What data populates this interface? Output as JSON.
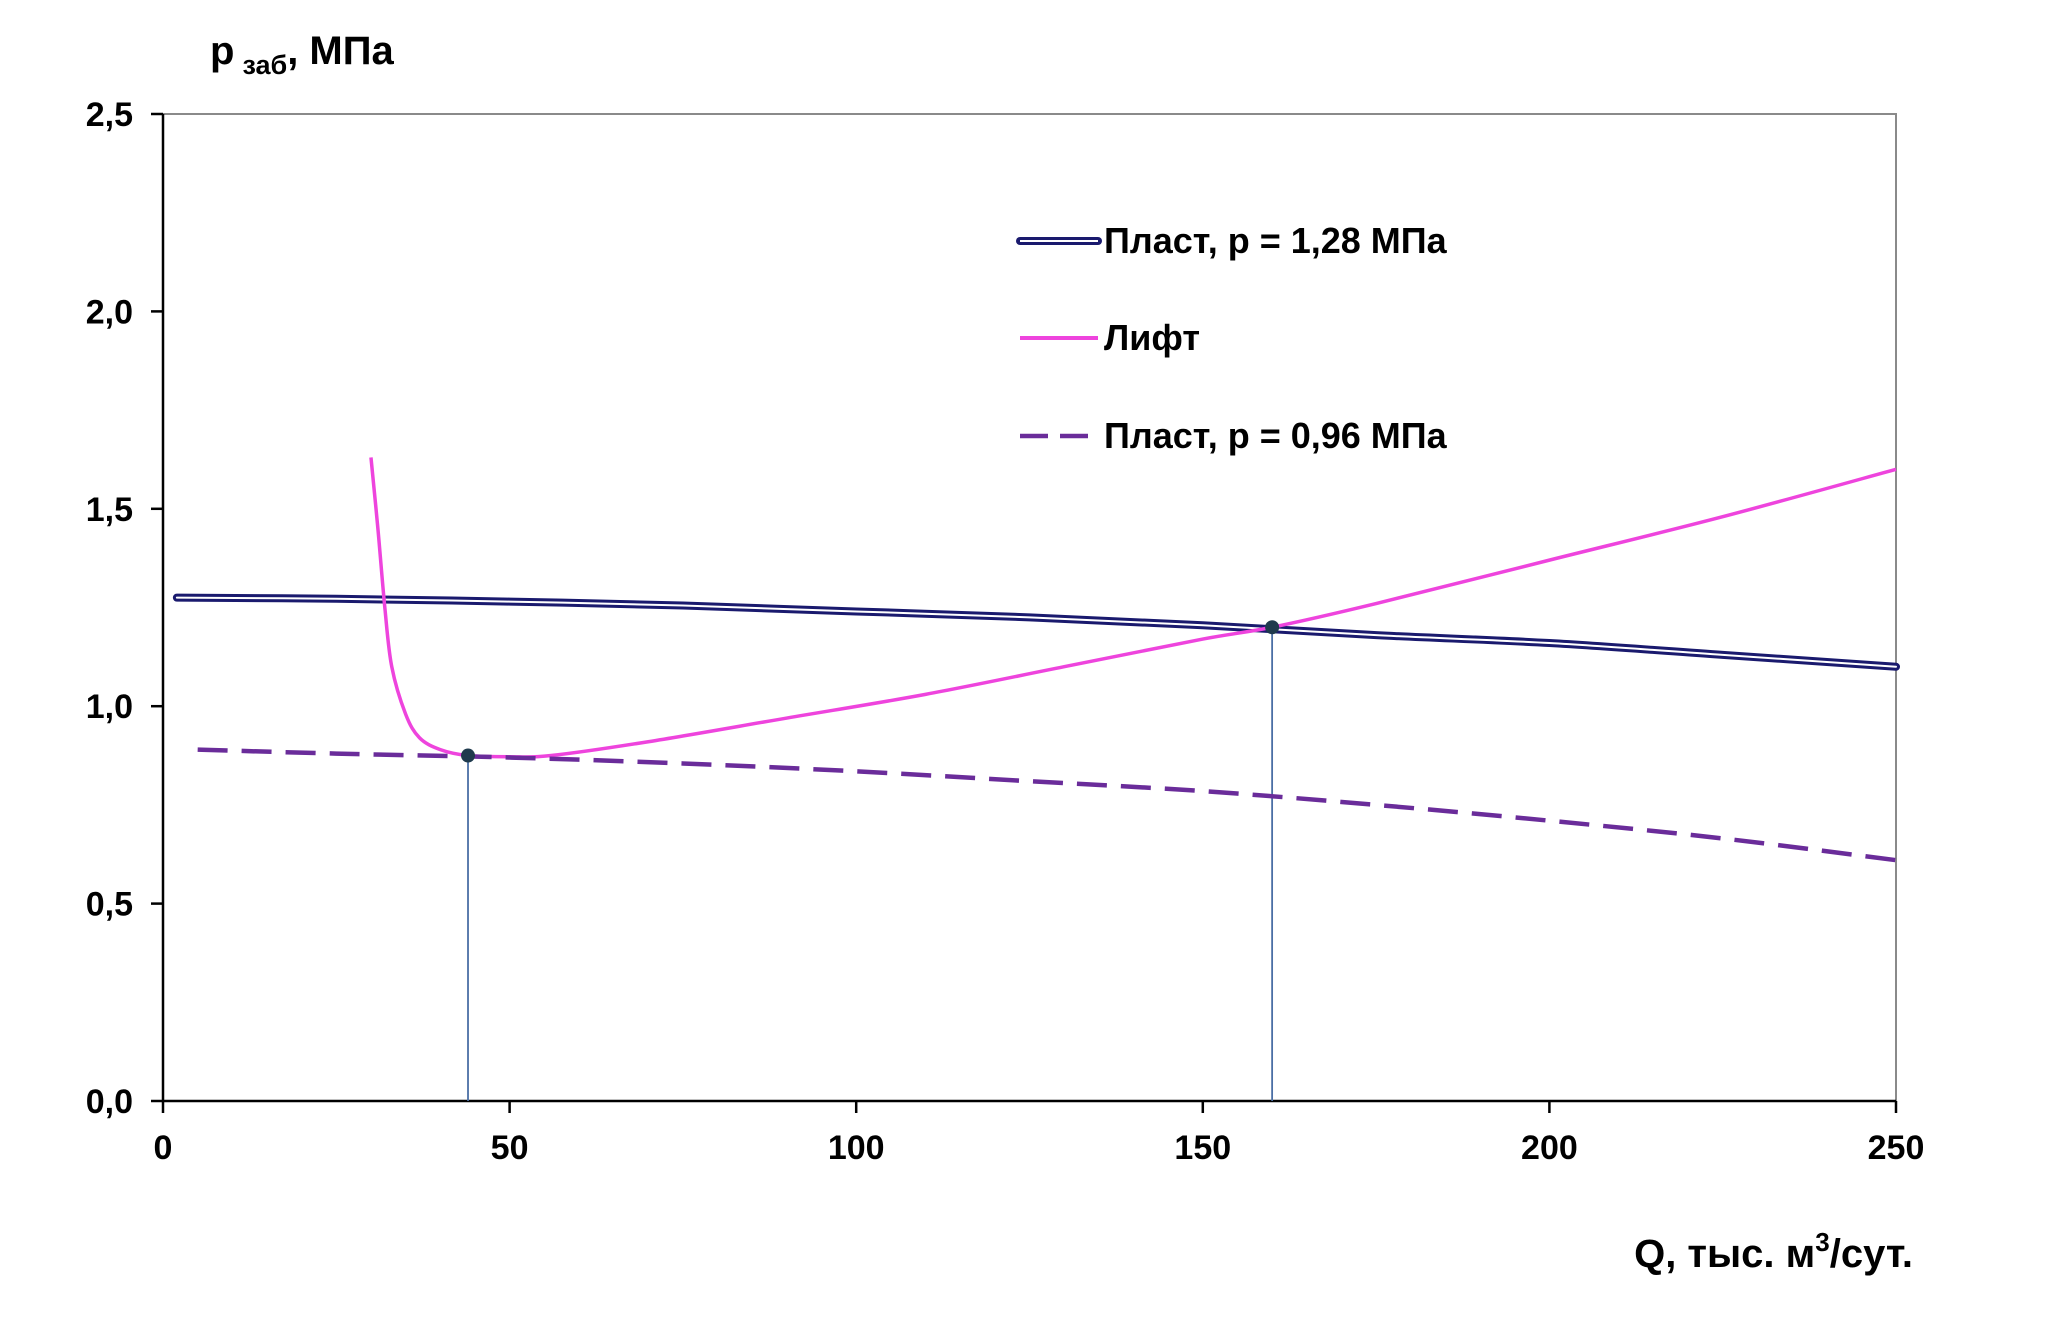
{
  "chart_data": {
    "type": "line",
    "ylabel": {
      "main": "p",
      "sub": "заб",
      "unit": ", МПа"
    },
    "xlabel": {
      "main": "Q, тыс. м",
      "sup": "3",
      "tail": "/сут."
    },
    "xlim": [
      0,
      250
    ],
    "ylim": [
      0,
      2.5
    ],
    "x_ticks": [
      0,
      50,
      100,
      150,
      200,
      250
    ],
    "x_tick_labels": [
      "0",
      "50",
      "100",
      "150",
      "200",
      "250"
    ],
    "y_ticks": [
      0,
      0.5,
      1.0,
      1.5,
      2.0,
      2.5
    ],
    "y_tick_labels": [
      "0,0",
      "0,5",
      "1,0",
      "1,5",
      "2,0",
      "2,5"
    ],
    "grid": false,
    "legend_position": "top-right",
    "series": [
      {
        "name": "Пласт, p = 1,28 МПа",
        "color": "#1a1a6e",
        "style": "double-solid",
        "x": [
          2,
          25,
          50,
          75,
          100,
          125,
          150,
          175,
          200,
          225,
          250
        ],
        "y": [
          1.275,
          1.272,
          1.265,
          1.255,
          1.24,
          1.225,
          1.205,
          1.18,
          1.16,
          1.13,
          1.1
        ]
      },
      {
        "name": "Лифт",
        "color": "#ee44dd",
        "style": "solid",
        "x": [
          30,
          31,
          32,
          33,
          35,
          37,
          40,
          44,
          50,
          56,
          70,
          90,
          110,
          130,
          150,
          160,
          175,
          200,
          225,
          250
        ],
        "y": [
          1.63,
          1.45,
          1.25,
          1.1,
          0.98,
          0.92,
          0.89,
          0.875,
          0.872,
          0.875,
          0.91,
          0.97,
          1.03,
          1.1,
          1.17,
          1.2,
          1.26,
          1.37,
          1.48,
          1.6
        ]
      },
      {
        "name": "Пласт, p = 0,96 МПа",
        "color": "#6a2c9a",
        "style": "dashed",
        "x": [
          5,
          25,
          50,
          75,
          100,
          125,
          150,
          175,
          200,
          225,
          250
        ],
        "y": [
          0.89,
          0.88,
          0.87,
          0.855,
          0.835,
          0.81,
          0.785,
          0.75,
          0.71,
          0.665,
          0.61
        ]
      }
    ],
    "markers": [
      {
        "x": 44,
        "y": 0.875
      },
      {
        "x": 160,
        "y": 1.2
      }
    ]
  }
}
